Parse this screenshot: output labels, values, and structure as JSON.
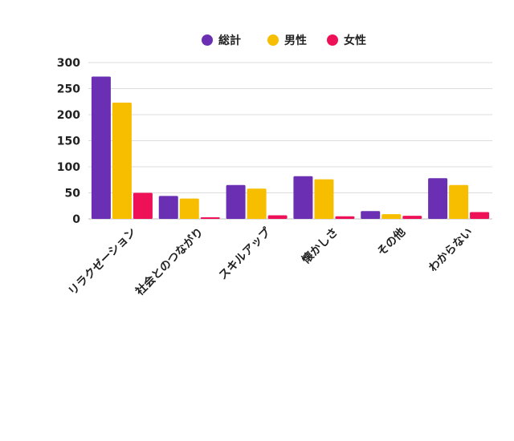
{
  "chart_data": {
    "type": "bar",
    "categories": [
      "リラクゼーション",
      "社会とのつながり",
      "スキルアップ",
      "懐かしさ",
      "その他",
      "わからない"
    ],
    "series": [
      {
        "name": "総計",
        "color": "#6a2fb3",
        "values": [
          273,
          44,
          65,
          82,
          15,
          78
        ]
      },
      {
        "name": "男性",
        "color": "#f7be00",
        "values": [
          223,
          39,
          58,
          76,
          9,
          65
        ]
      },
      {
        "name": "女性",
        "color": "#ee1158",
        "values": [
          50,
          3,
          7,
          5,
          6,
          13
        ]
      }
    ],
    "yticks": [
      0,
      50,
      100,
      150,
      200,
      250,
      300
    ],
    "ylim": [
      0,
      300
    ],
    "grid": true,
    "legend_position": "top-center"
  }
}
